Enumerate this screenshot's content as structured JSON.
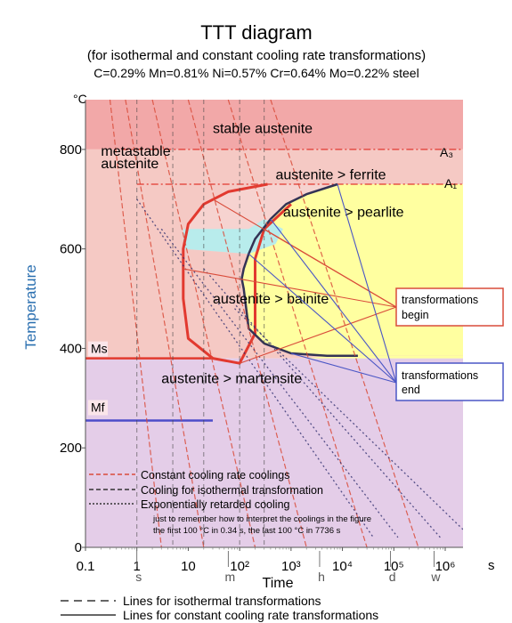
{
  "title": "TTT diagram",
  "subtitle": "(for isothermal and constant cooling rate transformations)",
  "composition": "C=0.29% Mn=0.81% Ni=0.57% Cr=0.64% Mo=0.22% steel",
  "colors": {
    "stable_austenite": "#f2a8a8",
    "metastable_austenite": "#f5c9c4",
    "ferrite": "#f6d3d0",
    "pearlite_zone": "#ffffa0",
    "bainite": "#b8ecec",
    "martensite": "#e4cde8",
    "ms_line": "#e23a2e",
    "mf_line": "#4d4dc9",
    "begin_curve": "#e2392f",
    "end_curve": "#333355",
    "annotation_red": "#d94b3a",
    "annotation_blue": "#4a56c5"
  },
  "chart_data": {
    "type": "line",
    "title": "TTT diagram",
    "xlabel": "Time",
    "ylabel": "Temperature",
    "y_unit": "°C",
    "x_scale": "log",
    "xlim": [
      0.1,
      1000000
    ],
    "ylim": [
      0,
      900
    ],
    "x_ticks": [
      {
        "value": 0.1,
        "label": "0.1"
      },
      {
        "value": 1,
        "label": "1"
      },
      {
        "value": 10,
        "label": "10"
      },
      {
        "value": 100,
        "label": "10²"
      },
      {
        "value": 1000,
        "label": "10³"
      },
      {
        "value": 10000,
        "label": "10⁴"
      },
      {
        "value": 100000,
        "label": "10⁵"
      },
      {
        "value": 1000000,
        "label": "10⁶"
      }
    ],
    "x_unit": "s",
    "time_markers": [
      {
        "value": 1,
        "label": "s"
      },
      {
        "value": 60,
        "label": "m"
      },
      {
        "value": 3600,
        "label": "h"
      },
      {
        "value": 86400,
        "label": "d"
      },
      {
        "value": 604800,
        "label": "w"
      }
    ],
    "y_ticks": [
      {
        "value": 0,
        "label": "0"
      },
      {
        "value": 200,
        "label": "200"
      },
      {
        "value": 400,
        "label": "400"
      },
      {
        "value": 600,
        "label": "600"
      },
      {
        "value": 800,
        "label": "800"
      }
    ],
    "grid": false,
    "critical_temps": [
      {
        "name": "A₃",
        "value": 800
      },
      {
        "name": "A₁",
        "value": 730
      },
      {
        "name": "Ms",
        "value": 380
      },
      {
        "name": "Mf",
        "value": 255
      }
    ],
    "region_labels": [
      {
        "text": "stable austenite",
        "x": 30,
        "y": 833
      },
      {
        "text": "metastable",
        "x": 0.2,
        "y": 787
      },
      {
        "text": "austenite",
        "x": 0.2,
        "y": 762
      },
      {
        "text": "austenite > ferrite",
        "x": 500,
        "y": 740
      },
      {
        "text": "austenite > pearlite",
        "x": 700,
        "y": 665
      },
      {
        "text": "austenite > bainite",
        "x": 30,
        "y": 490
      },
      {
        "text": "austenite > martensite",
        "x": 3,
        "y": 330
      }
    ],
    "series": [
      {
        "name": "transformation begin",
        "x": [
          350,
          60,
          20,
          10,
          8,
          8,
          10,
          30,
          100,
          200,
          200,
          300,
          1000
        ],
        "y": [
          730,
          715,
          690,
          650,
          600,
          500,
          420,
          380,
          370,
          430,
          580,
          640,
          690
        ]
      },
      {
        "name": "transformation end",
        "x": [
          8000,
          2000,
          800,
          400,
          200,
          150,
          120,
          110,
          120,
          150,
          300,
          1000,
          5000,
          20000
        ],
        "y": [
          730,
          710,
          690,
          660,
          620,
          590,
          560,
          540,
          520,
          440,
          410,
          390,
          385,
          385
        ]
      }
    ]
  },
  "annotations": {
    "begin_box": [
      "transformations",
      "begin"
    ],
    "end_box": [
      "transformations",
      "end"
    ],
    "inner_legend": [
      "Constant cooling rate coolings",
      "Cooling for isothermal transformation",
      "Exponentially retarded cooling"
    ],
    "note_lines": [
      "just to remember how to interpret the coolings in the figure",
      "the first 100 °C in 0.34 s, the last 100 °C in 7736 s"
    ]
  },
  "bottom_legend": [
    "Lines for isothermal transformations",
    "Lines for constant cooling rate transformations"
  ]
}
